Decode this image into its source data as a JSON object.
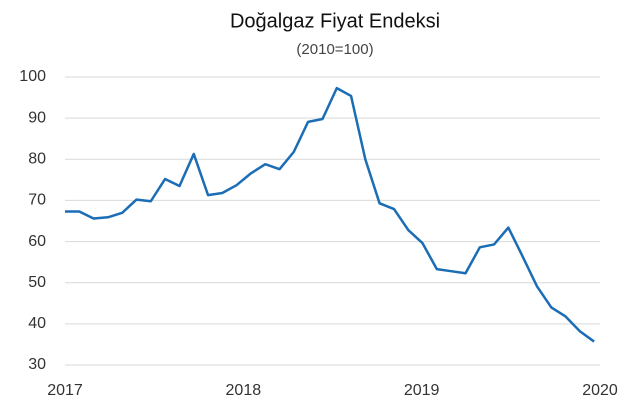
{
  "chart_data": {
    "type": "line",
    "title": "Doğalgaz Fiyat Endeksi",
    "subtitle": "(2010=100)",
    "x": [
      2017.0,
      2017.08,
      2017.16,
      2017.241,
      2017.321,
      2017.401,
      2017.481,
      2017.561,
      2017.642,
      2017.722,
      2017.802,
      2017.882,
      2017.962,
      2018.043,
      2018.123,
      2018.203,
      2018.283,
      2018.363,
      2018.444,
      2018.524,
      2018.604,
      2018.684,
      2018.764,
      2018.845,
      2018.925,
      2019.005,
      2019.085,
      2019.165,
      2019.246,
      2019.326,
      2019.406,
      2019.486,
      2019.566,
      2019.647,
      2019.727,
      2019.807,
      2019.887,
      2019.967
    ],
    "series": [
      {
        "name": "Doğalgaz Fiyat Endeksi",
        "color": "#1b6db5",
        "values": [
          67.3,
          67.3,
          65.6,
          65.9,
          67,
          70.2,
          69.8,
          75.2,
          73.5,
          81.3,
          71.3,
          71.8,
          73.7,
          76.6,
          78.8,
          77.6,
          81.8,
          89.1,
          89.8,
          97.3,
          95.4,
          80.0,
          69.3,
          67.9,
          62.8,
          59.6,
          53.3,
          52.8,
          52.3,
          58.6,
          59.3,
          63.4,
          56.4,
          49.1,
          44.0,
          41.8,
          38.2,
          35.7
        ]
      }
    ],
    "xlim": [
      2017,
      2020
    ],
    "xticks": [
      2017,
      2018,
      2019,
      2020
    ],
    "ylim": [
      30,
      100
    ],
    "yticks": [
      30,
      40,
      50,
      60,
      70,
      80,
      90,
      100
    ],
    "grid": true
  }
}
